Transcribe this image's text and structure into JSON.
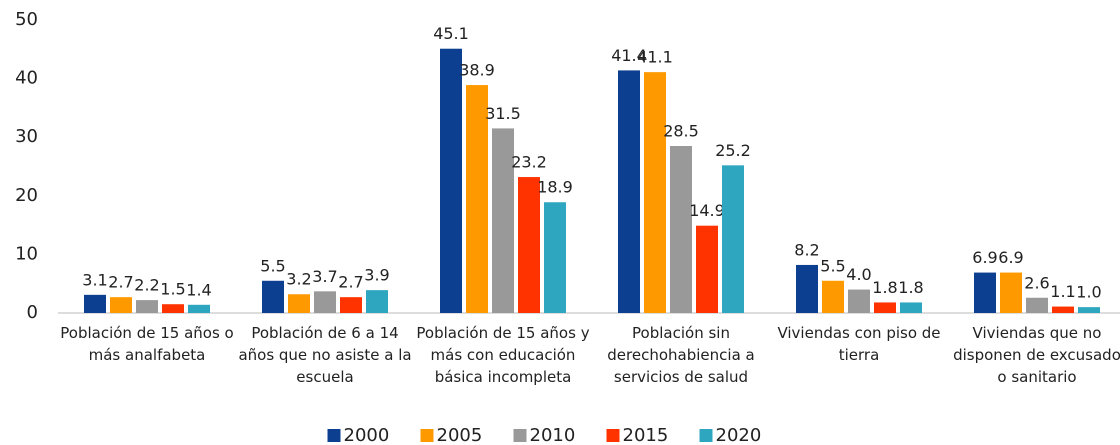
{
  "chart_data": {
    "type": "bar",
    "categories": [
      "Población de 15 años o más analfabeta",
      "Población de 6 a 14 años que no asiste a la escuela",
      "Población de 15 años y más con educación básica incompleta",
      "Población sin derechohabiencia a servicios de salud",
      "Viviendas con piso de tierra",
      "Viviendas que no disponen de excusado o sanitario"
    ],
    "series": [
      {
        "name": "2000",
        "color": "#0d3f91",
        "values": [
          3.1,
          5.5,
          45.1,
          41.4,
          8.2,
          6.9
        ],
        "value_labels": [
          "3.1",
          "5.5",
          "45.1",
          "41.4",
          "8.2",
          "6.9"
        ]
      },
      {
        "name": "2005",
        "color": "#ff9900",
        "values": [
          2.7,
          3.2,
          38.9,
          41.1,
          5.5,
          6.9
        ],
        "value_labels": [
          "2.7",
          "3.2",
          "38.9",
          "41.1",
          "5.5",
          "6.9"
        ]
      },
      {
        "name": "2010",
        "color": "#999999",
        "values": [
          2.2,
          3.7,
          31.5,
          28.5,
          4.0,
          2.6
        ],
        "value_labels": [
          "2.2",
          "3.7",
          "31.5",
          "28.5",
          "4.0",
          "2.6"
        ]
      },
      {
        "name": "2015",
        "color": "#ff3300",
        "values": [
          1.5,
          2.7,
          23.2,
          14.9,
          1.8,
          1.1
        ],
        "value_labels": [
          "1.5",
          "2.7",
          "23.2",
          "14.9",
          "1.8",
          "1.1"
        ]
      },
      {
        "name": "2020",
        "color": "#2ea6c0",
        "values": [
          1.4,
          3.9,
          18.9,
          25.2,
          1.8,
          1.0
        ],
        "value_labels": [
          "1.4",
          "3.9",
          "18.9",
          "25.2",
          "1.8",
          "1.0"
        ]
      }
    ],
    "ylim": [
      0,
      50
    ],
    "yticks": [
      0,
      10,
      20,
      30,
      40,
      50
    ],
    "grid": false,
    "legend": "bottom"
  }
}
